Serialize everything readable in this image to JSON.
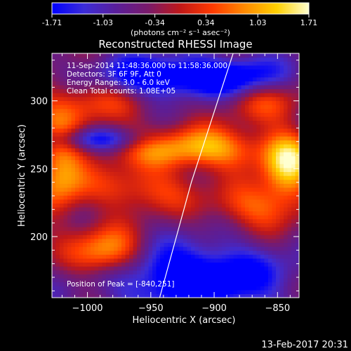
{
  "colorbar": {
    "tick_labels": [
      "-1.71",
      "-1.03",
      "-0.34",
      "0.34",
      "1.03",
      "1.71"
    ],
    "min": -1.71,
    "max": 1.71,
    "unit_label": "(photons cm⁻² s⁻¹ asec⁻²)"
  },
  "colors": {
    "background": "#000000",
    "text": "#ffffff",
    "limb": "#ffffff",
    "colormap": [
      "#0000ff",
      "#3c2cd8",
      "#5a1e9a",
      "#7a1a6a",
      "#c01818",
      "#ff3a00",
      "#ff8a00",
      "#ffd000",
      "#ffffd0"
    ]
  },
  "chart_data": {
    "type": "heatmap",
    "title": "Reconstructed RHESSI Image",
    "xlabel": "Heliocentric X (arcsec)",
    "ylabel": "Heliocentric Y (arcsec)",
    "xlim": [
      -1028,
      -833
    ],
    "ylim": [
      155,
      335
    ],
    "x_ticks": [
      -1000,
      -950,
      -900,
      -850
    ],
    "y_ticks": [
      200,
      250,
      300
    ],
    "x_tick_labels": [
      "−1000",
      "−950",
      "−900",
      "−850"
    ],
    "y_tick_labels": [
      "200",
      "250",
      "300"
    ],
    "annotations": [
      "11-Sep-2014 11:48:36.000 to 11:58:36.000",
      "Detectors: 3F 6F 9F, Att 0",
      "Energy Range: 3.0 - 6.0 keV",
      "Clean     Total counts: 1.08E+05"
    ],
    "peak_label": "Position of Peak = [-840,251]",
    "peak": [
      -840,
      251
    ],
    "limb_line": [
      [
        -943,
        155
      ],
      [
        -918,
        240
      ],
      [
        -885,
        335
      ]
    ],
    "intensity_blobs": [
      {
        "x": -985,
        "y": 188,
        "sx": 20,
        "sy": 13,
        "v": 0.95
      },
      {
        "x": -912,
        "y": 265,
        "sx": 42,
        "sy": 11,
        "v": 0.95
      },
      {
        "x": -842,
        "y": 251,
        "sx": 14,
        "sy": 18,
        "v": 1.0
      },
      {
        "x": -1022,
        "y": 250,
        "sx": 14,
        "sy": 25,
        "v": 0.85
      },
      {
        "x": -960,
        "y": 235,
        "sx": 30,
        "sy": 12,
        "v": 0.6
      },
      {
        "x": -870,
        "y": 222,
        "sx": 25,
        "sy": 12,
        "v": 0.6
      },
      {
        "x": -1000,
        "y": 300,
        "sx": 35,
        "sy": 15,
        "v": 0.5
      },
      {
        "x": -860,
        "y": 300,
        "sx": 25,
        "sy": 12,
        "v": 0.45
      }
    ],
    "dark_regions": [
      {
        "x": -915,
        "y": 170,
        "sx": 45,
        "sy": 16,
        "v": 1.0
      },
      {
        "x": -945,
        "y": 318,
        "sx": 35,
        "sy": 10,
        "v": 0.95
      },
      {
        "x": -995,
        "y": 272,
        "sx": 30,
        "sy": 6,
        "v": 0.6
      },
      {
        "x": -880,
        "y": 318,
        "sx": 25,
        "sy": 10,
        "v": 0.7
      }
    ]
  },
  "footer": {
    "date": "13-Feb-2017 20:31"
  }
}
